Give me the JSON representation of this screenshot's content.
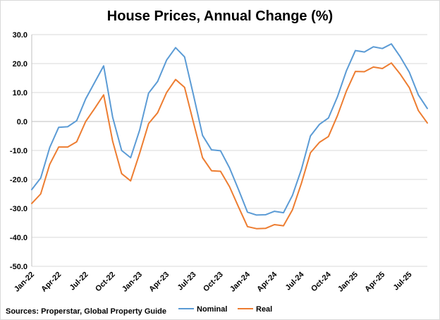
{
  "chart_data": {
    "type": "line",
    "title": "House Prices, Annual Change (%)",
    "source": "Sources: Properstar, Global Property Guide",
    "ylim": [
      -50,
      30
    ],
    "yticks": [
      "30.0",
      "20.0",
      "10.0",
      "0.0",
      "-10.0",
      "-20.0",
      "-30.0",
      "-40.0",
      "-50.0"
    ],
    "grid": true,
    "legend": "bottom",
    "categories": [
      "Jan-22",
      "Feb-22",
      "Mar-22",
      "Apr-22",
      "May-22",
      "Jun-22",
      "Jul-22",
      "Aug-22",
      "Sep-22",
      "Oct-22",
      "Nov-22",
      "Dec-22",
      "Jan-23",
      "Feb-23",
      "Mar-23",
      "Apr-23",
      "May-23",
      "Jun-23",
      "Jul-23",
      "Aug-23",
      "Sep-23",
      "Oct-23",
      "Nov-23",
      "Dec-23",
      "Jan-24",
      "Feb-24",
      "Mar-24",
      "Apr-24",
      "May-24",
      "Jun-24",
      "Jul-24",
      "Aug-24",
      "Sep-24",
      "Oct-24",
      "Nov-24",
      "Dec-24",
      "Jan-25",
      "Feb-25",
      "Mar-25",
      "Apr-25",
      "May-25",
      "Jun-25",
      "Jul-25",
      "Aug-25",
      "Sep-25"
    ],
    "x_tick_labels": [
      "Jan-22",
      "Apr-22",
      "Jul-22",
      "Oct-22",
      "Jan-23",
      "Apr-23",
      "Jul-23",
      "Oct-23",
      "Jan-24",
      "Apr-24",
      "Jul-24",
      "Oct-24",
      "Jan-25",
      "Apr-25",
      "Jul-25"
    ],
    "series": [
      {
        "name": "Nominal",
        "color": "#5b9bd5",
        "values": [
          -23.5,
          -19.5,
          -9,
          -2,
          -1.8,
          0.3,
          7.8,
          13.5,
          19.2,
          1.5,
          -10,
          -12.5,
          -3,
          9.8,
          13.8,
          21.2,
          25.5,
          22.3,
          9,
          -4.8,
          -9.8,
          -10.1,
          -16,
          -23.5,
          -31.3,
          -32.3,
          -32.2,
          -31,
          -31.5,
          -25.5,
          -16.5,
          -5,
          -1,
          1.2,
          8.5,
          17.5,
          24.5,
          24,
          25.8,
          25.2,
          26.8,
          22.3,
          17,
          9.2,
          4.5
        ]
      },
      {
        "name": "Real",
        "color": "#ed7d31",
        "values": [
          -28.3,
          -25,
          -14.8,
          -8.8,
          -8.8,
          -7,
          0,
          4.5,
          9.2,
          -6.8,
          -18,
          -20.5,
          -11,
          -0.7,
          3,
          10,
          14.5,
          11.8,
          -0.5,
          -12.5,
          -17,
          -17.2,
          -22.5,
          -29.5,
          -36.3,
          -37,
          -36.9,
          -35.6,
          -36,
          -30.5,
          -21.3,
          -10.8,
          -7.2,
          -5.2,
          2,
          10.5,
          17.3,
          17.2,
          18.8,
          18.3,
          20.2,
          16.3,
          11.7,
          3.8,
          -0.5
        ]
      }
    ]
  }
}
